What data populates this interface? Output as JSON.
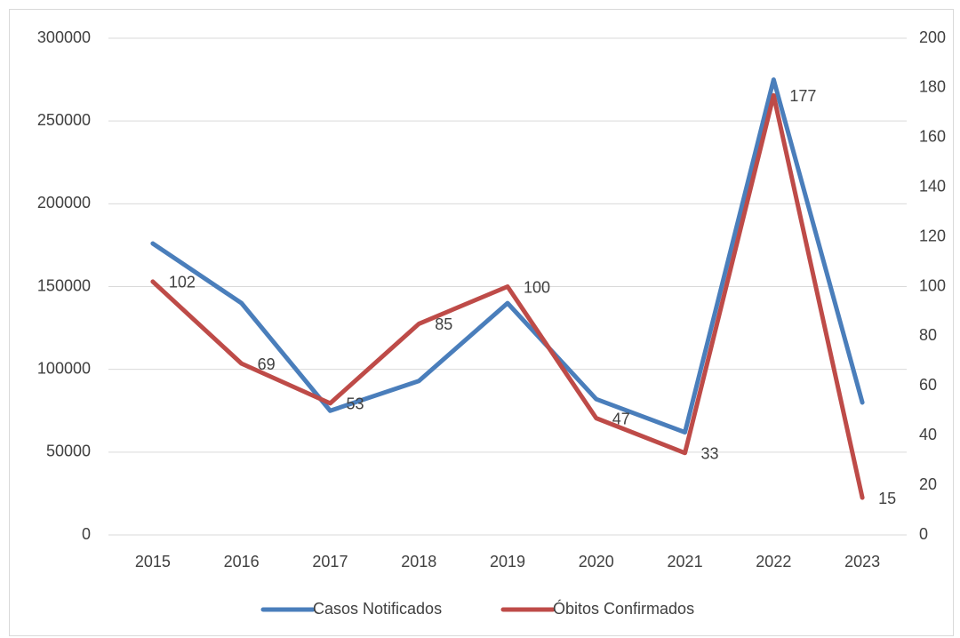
{
  "chart_data": {
    "type": "line",
    "categories": [
      "2015",
      "2016",
      "2017",
      "2018",
      "2019",
      "2020",
      "2021",
      "2022",
      "2023"
    ],
    "series": [
      {
        "name": "Casos Notificados",
        "color": "#4a7ebb",
        "values": [
          176000,
          140000,
          75000,
          93000,
          140000,
          82000,
          62000,
          275000,
          80000
        ]
      },
      {
        "name": "Óbitos Confirmados",
        "color": "#be4b48",
        "axis": "y2",
        "values": [
          102,
          69,
          53,
          85,
          100,
          47,
          33,
          177,
          15
        ]
      }
    ],
    "ylim": [
      0,
      300000
    ],
    "yticks": [
      0,
      50000,
      100000,
      150000,
      200000,
      250000,
      300000
    ],
    "y2lim": [
      0,
      200
    ],
    "y2ticks": [
      0,
      20,
      40,
      60,
      80,
      100,
      120,
      140,
      160,
      180,
      200
    ],
    "grid": true,
    "legend": "bottom"
  }
}
